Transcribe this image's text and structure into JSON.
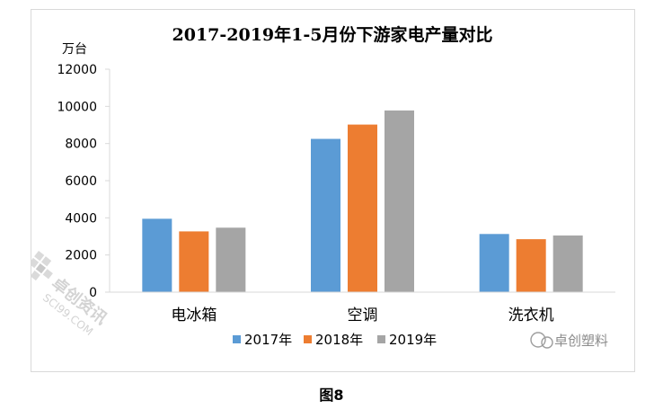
{
  "chart_data": {
    "type": "bar",
    "title": "2017-2019年1-5月份下游家电产量对比",
    "ylabel": "万台",
    "xlabel": "",
    "ylim": [
      0,
      12000
    ],
    "yticks": [
      0,
      2000,
      4000,
      6000,
      8000,
      10000,
      12000
    ],
    "categories": [
      "电冰箱",
      "空调",
      "洗衣机"
    ],
    "series": [
      {
        "name": "2017年",
        "color": "#5B9BD5",
        "values": [
          3950,
          8250,
          3130
        ]
      },
      {
        "name": "2018年",
        "color": "#ED7D31",
        "values": [
          3270,
          9020,
          2850
        ]
      },
      {
        "name": "2019年",
        "color": "#A5A5A5",
        "values": [
          3470,
          9780,
          3050
        ]
      }
    ],
    "grid": false,
    "legend": "bottom"
  },
  "watermark": {
    "text": "卓创塑料",
    "stamp_text": "卓创资讯",
    "stamp_url_text": "SCI99.COM"
  },
  "caption": "图8"
}
